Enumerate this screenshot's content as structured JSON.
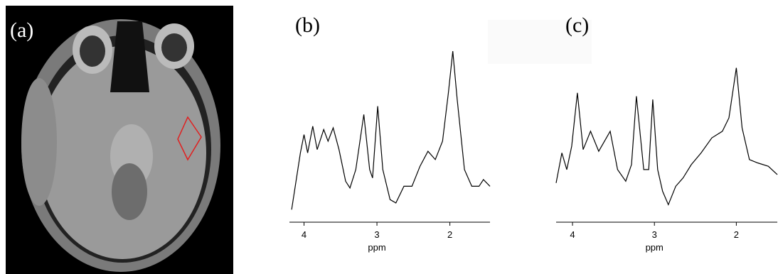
{
  "image": {
    "label": "(a)"
  },
  "chart_data": [
    {
      "type": "line",
      "title": "(b)",
      "xlabel": "ppm",
      "xlim": [
        4.2,
        1.45
      ],
      "ylim": [
        0,
        100
      ],
      "xticks": [
        4,
        3,
        2
      ],
      "color": "#000000",
      "x": [
        4.17,
        4.05,
        4.0,
        3.95,
        3.88,
        3.82,
        3.73,
        3.67,
        3.6,
        3.52,
        3.43,
        3.37,
        3.29,
        3.18,
        3.1,
        3.06,
        2.99,
        2.92,
        2.82,
        2.74,
        2.63,
        2.52,
        2.41,
        2.3,
        2.2,
        2.1,
        2.02,
        1.96,
        1.9,
        1.8,
        1.7,
        1.6,
        1.54,
        1.45
      ],
      "values": [
        2,
        36,
        47,
        36,
        52,
        38,
        50,
        43,
        51,
        38,
        19,
        15,
        26,
        59,
        26,
        21,
        64,
        26,
        8,
        6,
        16,
        16,
        28,
        37,
        32,
        43,
        72,
        97,
        68,
        26,
        16,
        16,
        20,
        16
      ]
    },
    {
      "type": "line",
      "title": "(c)",
      "xlabel": "ppm",
      "xlim": [
        4.2,
        1.5
      ],
      "ylim": [
        0,
        100
      ],
      "xticks": [
        4,
        3,
        2
      ],
      "color": "#000000",
      "x": [
        4.2,
        4.13,
        4.07,
        4.01,
        3.94,
        3.87,
        3.78,
        3.68,
        3.54,
        3.45,
        3.35,
        3.28,
        3.22,
        3.13,
        3.07,
        3.02,
        2.96,
        2.9,
        2.83,
        2.74,
        2.65,
        2.55,
        2.43,
        2.3,
        2.17,
        2.09,
        2.0,
        1.93,
        1.84,
        1.74,
        1.61,
        1.5
      ],
      "values": [
        18,
        36,
        26,
        40,
        72,
        38,
        49,
        37,
        49,
        26,
        19,
        29,
        70,
        26,
        26,
        68,
        26,
        13,
        5,
        16,
        21,
        29,
        36,
        45,
        49,
        57,
        87,
        51,
        32,
        30,
        28,
        23
      ]
    }
  ]
}
